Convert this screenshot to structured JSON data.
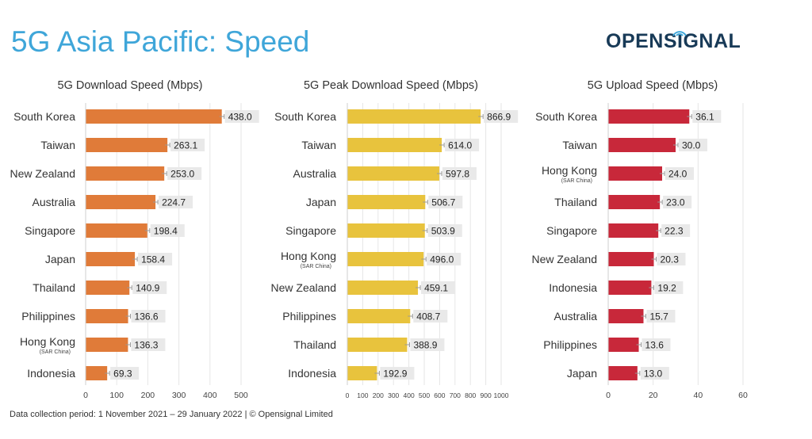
{
  "title": "5G Asia Pacific: Speed",
  "logo": "OPENSIGNAL",
  "footer": "Data collection period: 1 November 2021 – 29 January 2022 |  © Opensignal Limited",
  "chart_data": [
    {
      "type": "bar",
      "orientation": "horizontal",
      "title": "5G Download Speed (Mbps)",
      "categories": [
        "South Korea",
        "Taiwan",
        "New Zealand",
        "Australia",
        "Singapore",
        "Japan",
        "Thailand",
        "Philippines",
        "Hong Kong",
        "Indonesia"
      ],
      "sublabels": [
        "",
        "",
        "",
        "",
        "",
        "",
        "",
        "",
        "(SAR China)",
        ""
      ],
      "values": [
        438.0,
        263.1,
        253.0,
        224.7,
        198.4,
        158.4,
        140.9,
        136.6,
        136.3,
        69.3
      ],
      "value_labels": [
        "438.0",
        "263.1",
        "253.0",
        "224.7",
        "198.4",
        "158.4",
        "140.9",
        "136.6",
        "136.3",
        "69.3"
      ],
      "xlim": [
        0,
        500
      ],
      "ticks": [
        0,
        100,
        200,
        300,
        400,
        500
      ],
      "color": "#e07b39",
      "grid": true
    },
    {
      "type": "bar",
      "orientation": "horizontal",
      "title": "5G Peak Download Speed (Mbps)",
      "categories": [
        "South Korea",
        "Taiwan",
        "Australia",
        "Japan",
        "Singapore",
        "Hong Kong",
        "New Zealand",
        "Philippines",
        "Thailand",
        "Indonesia"
      ],
      "sublabels": [
        "",
        "",
        "",
        "",
        "",
        "(SAR China)",
        "",
        "",
        "",
        ""
      ],
      "values": [
        866.9,
        614.0,
        597.8,
        506.7,
        503.9,
        496.0,
        459.1,
        408.7,
        388.9,
        192.9
      ],
      "value_labels": [
        "866.9",
        "614.0",
        "597.8",
        "506.7",
        "503.9",
        "496.0",
        "459.1",
        "408.7",
        "388.9",
        "192.9"
      ],
      "xlim": [
        0,
        1000
      ],
      "ticks": [
        0,
        100,
        200,
        300,
        400,
        500,
        600,
        700,
        800,
        900,
        1000
      ],
      "color": "#e8c33d",
      "grid": true
    },
    {
      "type": "bar",
      "orientation": "horizontal",
      "title": "5G Upload Speed (Mbps)",
      "categories": [
        "South Korea",
        "Taiwan",
        "Hong Kong",
        "Thailand",
        "Singapore",
        "New Zealand",
        "Indonesia",
        "Australia",
        "Philippines",
        "Japan"
      ],
      "sublabels": [
        "",
        "",
        "(SAR China)",
        "",
        "",
        "",
        "",
        "",
        "",
        ""
      ],
      "values": [
        36.1,
        30.0,
        24.0,
        23.0,
        22.3,
        20.3,
        19.2,
        15.7,
        13.6,
        13.0
      ],
      "value_labels": [
        "36.1",
        "30.0",
        "24.0",
        "23.0",
        "22.3",
        "20.3",
        "19.2",
        "15.7",
        "13.6",
        "13.0"
      ],
      "xlim": [
        0,
        60
      ],
      "ticks": [
        0,
        20,
        40,
        60
      ],
      "color": "#c8283a",
      "grid": true
    }
  ]
}
